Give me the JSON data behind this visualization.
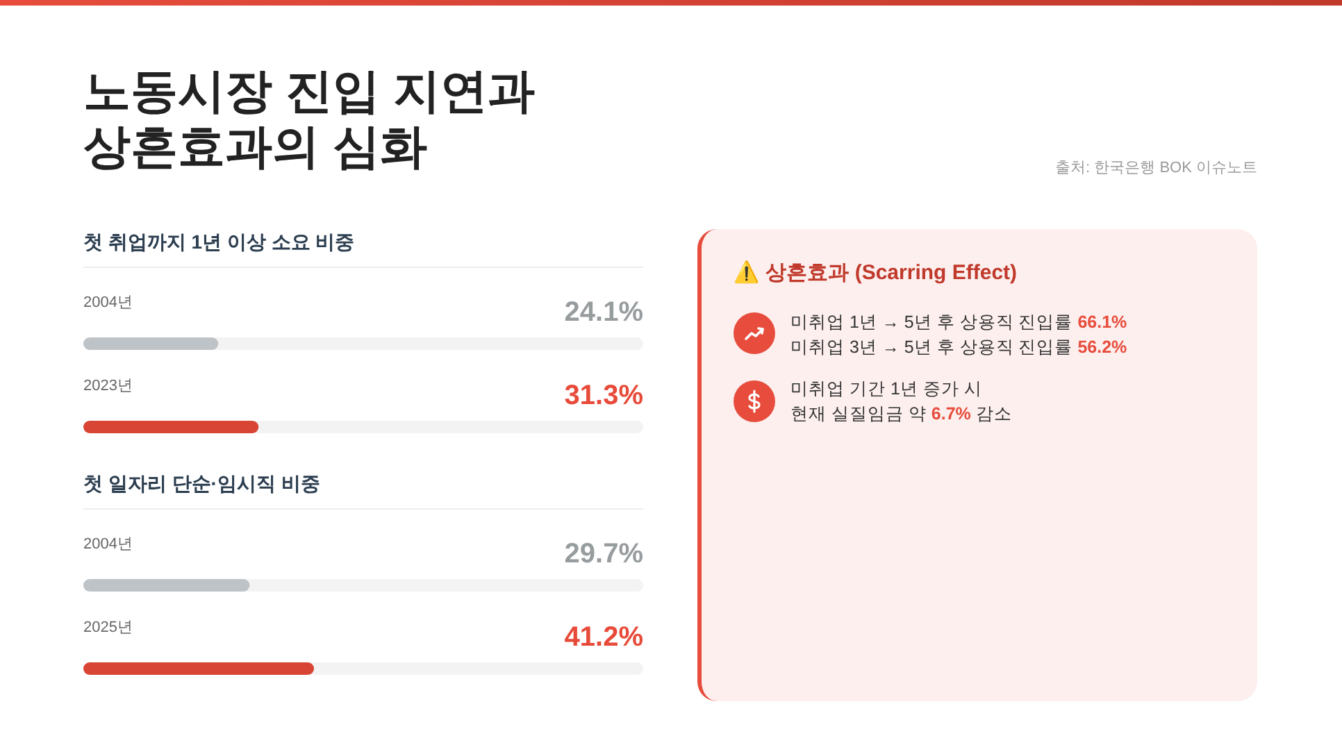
{
  "chart_data": [
    {
      "type": "other",
      "title": "노동시장 진입 지연과 상흔효과의 심화",
      "annotations": [
        "출처: 한국은행 BOK 이슈노트"
      ]
    },
    {
      "type": "bar",
      "orientation": "horizontal",
      "title": "첫 취업까지 1년 이상 소요 비중",
      "categories": [
        "2004년",
        "2023년"
      ],
      "values": [
        24.1,
        31.3
      ],
      "value_labels": [
        "24.1%",
        "31.3%"
      ],
      "colors": [
        "#bdc3c7",
        "#d94535"
      ],
      "xlim": [
        0,
        100
      ],
      "tick_labels": "y"
    },
    {
      "type": "bar",
      "orientation": "horizontal",
      "title": "첫 일자리 단순·임시직 비중",
      "categories": [
        "2004년",
        "2025년"
      ],
      "values": [
        29.7,
        41.2
      ],
      "value_labels": [
        "29.7%",
        "41.2%"
      ],
      "colors": [
        "#bdc3c7",
        "#d94535"
      ],
      "xlim": [
        0,
        100
      ],
      "tick_labels": "y"
    },
    {
      "type": "other",
      "title": "⚠️ 상흔효과 (Scarring Effect)",
      "annotations": [
        "미취업 1년 → 5년 후 상용직 진입률 66.1%",
        "미취업 3년 → 5년 후 상용직 진입률 56.2%",
        "미취업 기간 1년 증가 시",
        "현재 실질임금 약 6.7% 감소"
      ]
    }
  ]
}
